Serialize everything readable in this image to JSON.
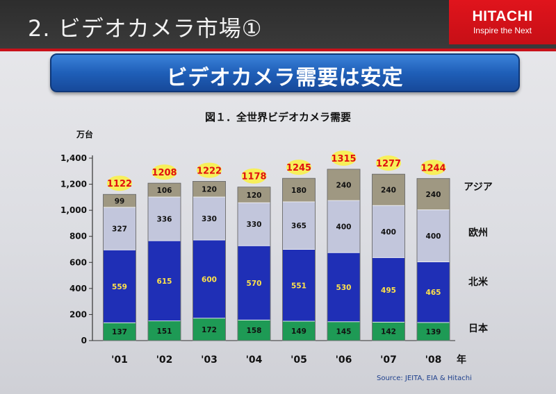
{
  "slide": {
    "title": "2. ビデオカメラ市場①",
    "logo_name": "HITACHI",
    "logo_tagline": "Inspire the Next",
    "banner": "ビデオカメラ需要は安定",
    "source": "Source: JEITA, EIA  & Hitachi"
  },
  "chart_data": {
    "type": "bar",
    "stacked": true,
    "title": "図１．全世界ビデオカメラ需要",
    "ylabel": "万台",
    "x_unit": "年",
    "ylim": [
      0,
      1400
    ],
    "yticks": [
      "0",
      "200",
      "400",
      "600",
      "800",
      "1,000",
      "1,200",
      "1,400"
    ],
    "categories": [
      "'01",
      "'02",
      "'03",
      "'04",
      "'05",
      "'06",
      "'07",
      "'08"
    ],
    "series": [
      {
        "name": "日本",
        "color": "#1e9a55",
        "values": [
          137,
          151,
          172,
          158,
          149,
          145,
          142,
          139
        ]
      },
      {
        "name": "北米",
        "color": "#1f2fb6",
        "values": [
          559,
          615,
          600,
          570,
          551,
          530,
          495,
          465
        ]
      },
      {
        "name": "欧州",
        "color": "#c2c6dc",
        "values": [
          327,
          336,
          330,
          330,
          365,
          400,
          400,
          400
        ]
      },
      {
        "name": "アジア",
        "color": "#9f9882",
        "values": [
          99,
          106,
          120,
          120,
          180,
          240,
          240,
          240
        ]
      }
    ],
    "totals": [
      1122,
      1208,
      1222,
      1178,
      1245,
      1315,
      1277,
      1244
    ]
  }
}
